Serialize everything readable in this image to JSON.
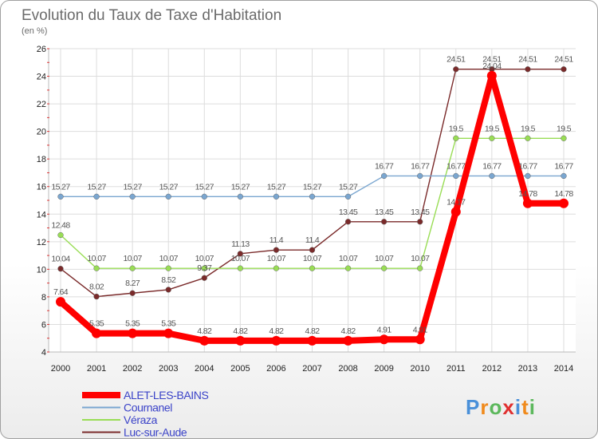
{
  "chart_data": {
    "type": "line",
    "title": "Evolution du Taux de Taxe d'Habitation",
    "subtitle": "(en %)",
    "x": [
      2000,
      2001,
      2002,
      2003,
      2004,
      2005,
      2006,
      2007,
      2008,
      2009,
      2010,
      2011,
      2012,
      2013,
      2014
    ],
    "ylim": [
      4,
      26
    ],
    "yticks": [
      4,
      6,
      8,
      10,
      12,
      14,
      16,
      18,
      20,
      22,
      24,
      26
    ],
    "grid": true,
    "legend_position": "bottom-left",
    "series": [
      {
        "name": "ALET-LES-BAINS",
        "color": "#ff0000",
        "values": [
          7.64,
          5.35,
          5.35,
          5.35,
          4.82,
          4.82,
          4.82,
          4.82,
          4.82,
          4.91,
          4.91,
          14.17,
          24.04,
          14.78,
          14.78
        ],
        "labels": [
          "7.64",
          "5.35",
          "5.35",
          "5.35",
          "4.82",
          "4.82",
          "4.82",
          "4.82",
          "4.82",
          "4.91",
          "4.91",
          "14.17",
          "24.04",
          "14.78",
          "14.78"
        ]
      },
      {
        "name": "Cournanel",
        "color": "#7aa6d0",
        "values": [
          15.27,
          15.27,
          15.27,
          15.27,
          15.27,
          15.27,
          15.27,
          15.27,
          15.27,
          16.77,
          16.77,
          16.77,
          16.77,
          16.77,
          16.77
        ],
        "labels": [
          "15.27",
          "15.27",
          "15.27",
          "15.27",
          "15.27",
          "15.27",
          "15.27",
          "15.27",
          "15.27",
          "16.77",
          "16.77",
          "16.77",
          "16.77",
          "16.77",
          "16.77"
        ]
      },
      {
        "name": "Véraza",
        "color": "#99dd55",
        "values": [
          12.48,
          10.07,
          10.07,
          10.07,
          10.07,
          10.07,
          10.07,
          10.07,
          10.07,
          10.07,
          10.07,
          19.5,
          19.5,
          19.5,
          19.5
        ],
        "labels": [
          "12.48",
          "10.07",
          "10.07",
          "10.07",
          "10.07",
          "10.07",
          "10.07",
          "10.07",
          "10.07",
          "10.07",
          "10.07",
          "19.5",
          "19.5",
          "19.5",
          "19.5"
        ]
      },
      {
        "name": "Luc-sur-Aude",
        "color": "#7a2a2a",
        "values": [
          10.04,
          8.02,
          8.27,
          8.52,
          9.37,
          11.13,
          11.4,
          11.4,
          13.45,
          13.45,
          13.45,
          24.51,
          24.51,
          24.51,
          24.51
        ],
        "labels": [
          "10.04",
          "8.02",
          "8.27",
          "8.52",
          "9.37",
          "11.13",
          "11.4",
          "11.4",
          "13.45",
          "13.45",
          "13.45",
          "24.51",
          "24.51",
          "24.51",
          "24.51"
        ]
      }
    ]
  },
  "logo": {
    "text": "Proxiti",
    "letter_colors": [
      "#4a90d9",
      "#f08a1c",
      "#5cb85c",
      "#e03030",
      "#4a90d9",
      "#f08a1c",
      "#5cb85c"
    ]
  }
}
